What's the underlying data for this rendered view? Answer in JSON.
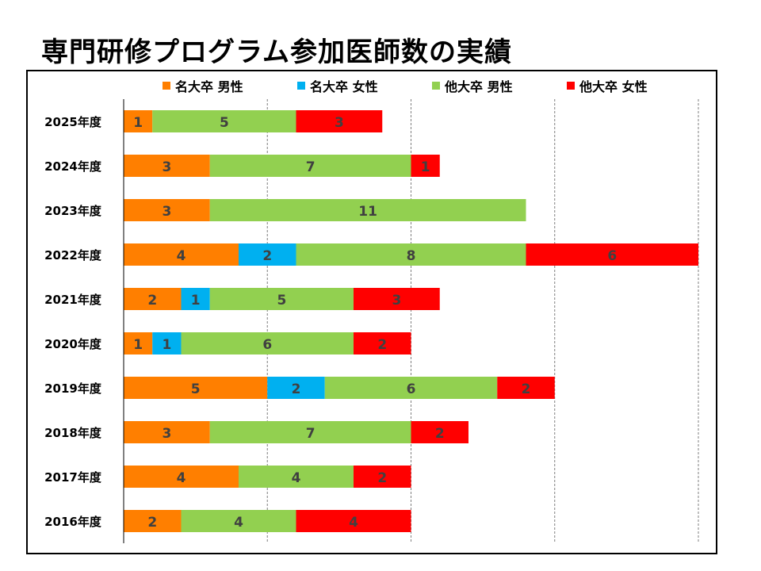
{
  "title": "専門研修プログラム参加医師数の実績",
  "chart_data": {
    "type": "bar",
    "orientation": "horizontal",
    "stacked": true,
    "title": "専門研修プログラム参加医師数の実績",
    "categories": [
      "2025年度",
      "2024年度",
      "2023年度",
      "2022年度",
      "2021年度",
      "2020年度",
      "2019年度",
      "2018年度",
      "2017年度",
      "2016年度"
    ],
    "series": [
      {
        "name": "名大卒 男性",
        "color": "#FF7F00",
        "values": [
          1,
          3,
          3,
          4,
          2,
          1,
          5,
          3,
          4,
          2
        ]
      },
      {
        "name": "名大卒 女性",
        "color": "#00B0F0",
        "values": [
          0,
          0,
          0,
          2,
          1,
          1,
          2,
          0,
          0,
          0
        ]
      },
      {
        "name": "他大卒 男性",
        "color": "#92D050",
        "values": [
          5,
          7,
          11,
          8,
          5,
          6,
          6,
          7,
          4,
          4
        ]
      },
      {
        "name": "他大卒 女性",
        "color": "#FF0000",
        "values": [
          3,
          1,
          0,
          6,
          3,
          2,
          2,
          2,
          2,
          4
        ]
      }
    ],
    "xlim": [
      0,
      20
    ],
    "grid": true,
    "legend_position": "top",
    "label_color": "#404040"
  }
}
